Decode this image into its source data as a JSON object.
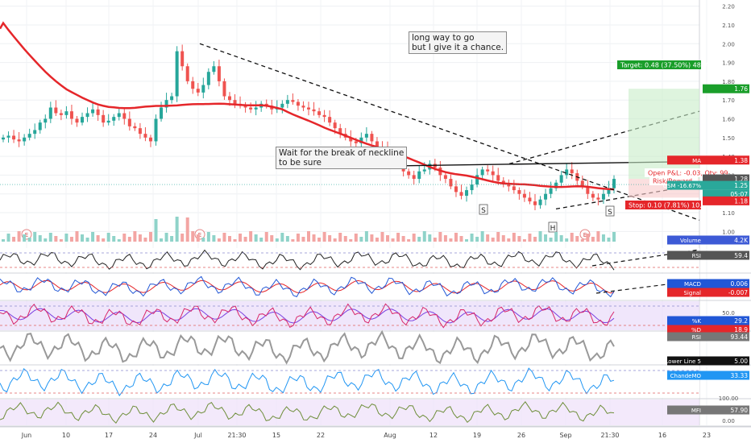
{
  "chart_data": {
    "type": "candlestick",
    "price_axis": {
      "ticks": [
        "2.20",
        "2.10",
        "2.00",
        "1.90",
        "1.80",
        "1.70",
        "1.60",
        "1.50",
        "1.40",
        "1.30",
        "1.20",
        "1.10",
        "1.00"
      ],
      "range": [
        0.98,
        2.22
      ]
    },
    "time_axis": {
      "labels": [
        "Jun",
        "10",
        "17",
        "24",
        "Jul",
        "21:30",
        "15",
        "22",
        "Aug",
        "12",
        "19",
        "26",
        "Sep",
        "21:30",
        "16",
        "23"
      ]
    },
    "annotations": [
      {
        "text": "long way to go\nbut I give it a chance."
      },
      {
        "text": "Wait for the break of neckline\nto be sure"
      }
    ],
    "pattern_labels": [
      "S",
      "H",
      "S"
    ],
    "event_markers": [
      "E",
      "E",
      "E"
    ],
    "trade_labels": {
      "target": "Target: 0.48 (37.50%) 48, Amount:",
      "open_pnl": "Open P&L: -0.03, Qty: 99",
      "risk_reward": "Risk/Reward",
      "stop": "Stop: 0.10 (7.81%) 10, Amount:"
    },
    "price_tags": [
      {
        "text": "1.76",
        "color": "#1a9e2a",
        "price": 1.76
      },
      {
        "text": "MA",
        "value": "1.38",
        "color": "#e5262a",
        "price": 1.38
      },
      {
        "text": "1.28",
        "color": "#555555",
        "price": 1.28
      },
      {
        "text": "GSM -16.67%",
        "value": "1.25",
        "color": "#2aa89a",
        "price": 1.25
      },
      {
        "text": "05:07",
        "color": "#2aa89a",
        "price": 1.235
      },
      {
        "text": "1.18",
        "color": "#e5262a",
        "price": 1.18
      }
    ],
    "indicators": [
      {
        "name": "Volume",
        "value": "4.2K",
        "color": "#3d5ad6"
      },
      {
        "name": "RSI",
        "value": "59.4",
        "color": "#555555"
      },
      {
        "name": "MACD",
        "value": "0.006",
        "color": "#2157d6"
      },
      {
        "name": "Signal",
        "value": "-0.007",
        "color": "#e5262a"
      },
      {
        "name": "%K",
        "value": "29.2",
        "color": "#2157d6",
        "axis": "50.0"
      },
      {
        "name": "%D",
        "value": "18.9",
        "color": "#e5262a"
      },
      {
        "name": "RSI",
        "value": "93.44",
        "color": "#777777"
      },
      {
        "name": "Lower Line",
        "value": "5",
        "extra": "5.00",
        "color": "#111111"
      },
      {
        "name": "ChandeMO",
        "value": "33.33",
        "color": "#2196f3"
      },
      {
        "name": "MFI",
        "value": "57.90",
        "color": "#777777",
        "axis_top": "100.00",
        "axis_bottom": "0.00"
      }
    ],
    "series": [
      {
        "name": "MA",
        "color": "#e5262a"
      }
    ],
    "price_levels": {
      "neckline": 1.355,
      "target": 1.76,
      "entry": 1.28,
      "stop": 1.18
    },
    "candles_close": [
      1.5,
      1.51,
      1.49,
      1.48,
      1.5,
      1.52,
      1.54,
      1.58,
      1.6,
      1.66,
      1.63,
      1.62,
      1.64,
      1.6,
      1.58,
      1.61,
      1.63,
      1.65,
      1.62,
      1.58,
      1.59,
      1.61,
      1.63,
      1.6,
      1.56,
      1.55,
      1.52,
      1.5,
      1.48,
      1.6,
      1.66,
      1.7,
      1.72,
      1.96,
      1.88,
      1.8,
      1.76,
      1.74,
      1.78,
      1.85,
      1.88,
      1.8,
      1.72,
      1.7,
      1.68,
      1.67,
      1.66,
      1.65,
      1.66,
      1.68,
      1.67,
      1.65,
      1.66,
      1.68,
      1.7,
      1.69,
      1.67,
      1.66,
      1.65,
      1.64,
      1.62,
      1.61,
      1.58,
      1.55,
      1.52,
      1.5,
      1.48,
      1.47,
      1.5,
      1.52,
      1.48,
      1.45,
      1.44,
      1.42,
      1.38,
      1.35,
      1.32,
      1.3,
      1.28,
      1.32,
      1.33,
      1.36,
      1.34,
      1.3,
      1.28,
      1.24,
      1.21,
      1.19,
      1.22,
      1.25,
      1.3,
      1.33,
      1.32,
      1.3,
      1.27,
      1.25,
      1.24,
      1.22,
      1.2,
      1.18,
      1.16,
      1.14,
      1.17,
      1.2,
      1.23,
      1.26,
      1.3,
      1.33,
      1.31,
      1.27,
      1.24,
      1.2,
      1.18,
      1.17,
      1.2,
      1.23,
      1.28
    ]
  }
}
